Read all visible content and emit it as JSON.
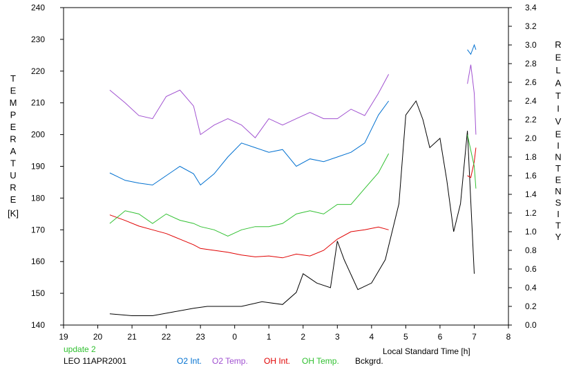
{
  "chart_data": {
    "type": "line",
    "title": "",
    "xlabel": "Local Standard Time [h]",
    "ylabel_left": "TEMPERATURE [K]",
    "ylabel_left_letters": [
      "T",
      "E",
      "M",
      "P",
      "E",
      "R",
      "A",
      "T",
      "U",
      "R",
      "E"
    ],
    "ylabel_left_unit": "[K]",
    "ylabel_right_letters_1": [
      "R",
      "E",
      "L",
      "A",
      "T",
      "I",
      "V",
      "E"
    ],
    "ylabel_right_letters_2": [
      "I",
      "N",
      "T",
      "E",
      "N",
      "S",
      "I",
      "T",
      "Y"
    ],
    "x_ticks": [
      {
        "pos": 19,
        "label": "19"
      },
      {
        "pos": 20,
        "label": "20"
      },
      {
        "pos": 21,
        "label": "21"
      },
      {
        "pos": 22,
        "label": "22"
      },
      {
        "pos": 23,
        "label": "23"
      },
      {
        "pos": 24,
        "label": "0"
      },
      {
        "pos": 25,
        "label": "1"
      },
      {
        "pos": 26,
        "label": "2"
      },
      {
        "pos": 27,
        "label": "3"
      },
      {
        "pos": 28,
        "label": "4"
      },
      {
        "pos": 29,
        "label": "5"
      },
      {
        "pos": 30,
        "label": "6"
      },
      {
        "pos": 31,
        "label": "7"
      },
      {
        "pos": 32,
        "label": "8"
      }
    ],
    "xlim": [
      19,
      32
    ],
    "ylim_left": [
      140,
      240
    ],
    "y_ticks_left": [
      "140",
      "150",
      "160",
      "170",
      "180",
      "190",
      "200",
      "210",
      "220",
      "230",
      "240"
    ],
    "ylim_right": [
      0.0,
      3.4
    ],
    "y_ticks_right": [
      "0.0",
      "0.2",
      "0.4",
      "0.6",
      "0.8",
      "1.0",
      "1.2",
      "1.4",
      "1.6",
      "1.8",
      "2.0",
      "2.2",
      "2.4",
      "2.6",
      "2.8",
      "3.0",
      "3.2",
      "3.4"
    ],
    "series": [
      {
        "name": "O2 Int.",
        "axis": "right",
        "color": "#0070d0",
        "x": [
          20.35,
          20.8,
          21.2,
          21.6,
          22.0,
          22.4,
          22.8,
          23.0,
          23.4,
          23.8,
          24.2,
          24.6,
          25.0,
          25.4,
          25.8,
          26.2,
          26.6,
          27.0,
          27.4,
          27.8,
          28.2,
          28.5
        ],
        "y": [
          1.63,
          1.55,
          1.52,
          1.5,
          1.6,
          1.7,
          1.62,
          1.5,
          1.62,
          1.8,
          1.95,
          1.9,
          1.85,
          1.88,
          1.7,
          1.78,
          1.75,
          1.8,
          1.85,
          1.95,
          2.25,
          2.4
        ]
      },
      {
        "name": "O2 Temp.",
        "axis": "left",
        "color": "#a050d0",
        "x": [
          20.35,
          20.8,
          21.2,
          21.6,
          22.0,
          22.4,
          22.8,
          23.0,
          23.4,
          23.8,
          24.2,
          24.6,
          25.0,
          25.4,
          25.8,
          26.2,
          26.6,
          27.0,
          27.4,
          27.8,
          28.2,
          28.5
        ],
        "y": [
          214,
          210,
          206,
          205,
          212,
          214,
          209,
          200,
          203,
          205,
          203,
          199,
          205,
          203,
          205,
          207,
          205,
          205,
          208,
          206,
          213,
          219
        ]
      },
      {
        "name": "OH Int.",
        "axis": "right",
        "color": "#e00000",
        "x": [
          20.35,
          20.8,
          21.2,
          21.6,
          22.0,
          22.4,
          22.8,
          23.0,
          23.4,
          23.8,
          24.2,
          24.6,
          25.0,
          25.4,
          25.8,
          26.2,
          26.6,
          27.0,
          27.4,
          27.8,
          28.2,
          28.5
        ],
        "y": [
          1.18,
          1.12,
          1.06,
          1.02,
          0.98,
          0.92,
          0.86,
          0.82,
          0.8,
          0.78,
          0.75,
          0.73,
          0.74,
          0.72,
          0.76,
          0.74,
          0.8,
          0.92,
          1.0,
          1.02,
          1.05,
          1.02
        ]
      },
      {
        "name": "OH Temp.",
        "axis": "left",
        "color": "#30c030",
        "x": [
          20.35,
          20.8,
          21.2,
          21.6,
          22.0,
          22.4,
          22.8,
          23.0,
          23.4,
          23.8,
          24.2,
          24.6,
          25.0,
          25.4,
          25.8,
          26.2,
          26.6,
          27.0,
          27.4,
          27.8,
          28.2,
          28.5
        ],
        "y": [
          172,
          176,
          175,
          172,
          175,
          173,
          172,
          171,
          170,
          168,
          170,
          171,
          171,
          172,
          175,
          176,
          175,
          178,
          178,
          183,
          188,
          194
        ]
      },
      {
        "name": "Bckgrd.",
        "axis": "right",
        "color": "#000000",
        "x": [
          20.35,
          21.0,
          21.6,
          22.2,
          22.8,
          23.2,
          23.6,
          24.2,
          24.8,
          25.4,
          25.8,
          26.0,
          26.4,
          26.8,
          27.0,
          27.2,
          27.6,
          28.0,
          28.4,
          28.8,
          29.0,
          29.3,
          29.5,
          29.7,
          30.0,
          30.2,
          30.4,
          30.6,
          30.8,
          31.0
        ],
        "y": [
          0.12,
          0.1,
          0.1,
          0.14,
          0.18,
          0.2,
          0.2,
          0.2,
          0.25,
          0.22,
          0.35,
          0.55,
          0.45,
          0.4,
          0.9,
          0.7,
          0.38,
          0.45,
          0.7,
          1.3,
          2.25,
          2.4,
          2.2,
          1.9,
          2.0,
          1.55,
          1.0,
          1.3,
          2.08,
          0.55
        ]
      },
      {
        "name": "",
        "axis": "right",
        "color": "#0070d0",
        "x": [
          30.8,
          30.9,
          31.0,
          31.05
        ],
        "y": [
          2.95,
          2.9,
          3.0,
          2.95
        ]
      },
      {
        "name": "",
        "axis": "left",
        "color": "#a050d0",
        "x": [
          30.8,
          30.9,
          31.0,
          31.05
        ],
        "y": [
          216,
          222,
          213,
          200
        ]
      },
      {
        "name": "",
        "axis": "right",
        "color": "#e00000",
        "x": [
          30.8,
          30.9,
          31.0,
          31.05
        ],
        "y": [
          1.6,
          1.58,
          1.75,
          1.9
        ]
      },
      {
        "name": "",
        "axis": "left",
        "color": "#30c030",
        "x": [
          30.8,
          30.9,
          31.0,
          31.05
        ],
        "y": [
          200,
          195,
          190,
          183
        ]
      }
    ],
    "legend": [
      {
        "label": "O2 Int.",
        "color": "#0070d0"
      },
      {
        "label": "O2 Temp.",
        "color": "#a050d0"
      },
      {
        "label": "OH Int.",
        "color": "#e00000"
      },
      {
        "label": "OH Temp.",
        "color": "#30c030"
      },
      {
        "label": "Bckgrd.",
        "color": "#000000"
      }
    ],
    "annotations": {
      "update": "update 2",
      "site_date": "LEO 11APR2001"
    },
    "grid": false
  }
}
